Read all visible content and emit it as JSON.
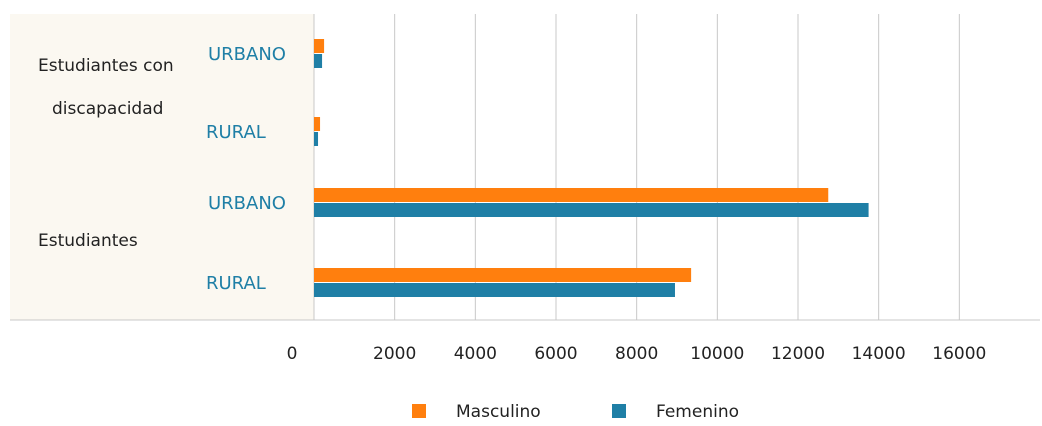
{
  "colors": {
    "masculino": "#FF7F0E",
    "femenino": "#1F7FA6",
    "sublabel": "#1F7FA6",
    "panel": "#FBF8F1",
    "grid": "#C8C8C8"
  },
  "chart_data": {
    "type": "bar",
    "orientation": "horizontal",
    "title": "",
    "xlabel": "",
    "ylabel": "",
    "xlim": [
      0,
      18000
    ],
    "x_ticks": [
      0,
      2000,
      4000,
      6000,
      8000,
      10000,
      12000,
      14000,
      16000
    ],
    "grid": true,
    "legend_position": "bottom",
    "groups": [
      {
        "label_lines": [
          "Estudiantes con",
          "discapacidad"
        ],
        "categories": [
          {
            "label": "URBANO",
            "values": {
              "Masculino": 250,
              "Femenino": 200
            }
          },
          {
            "label": "RURAL",
            "values": {
              "Masculino": 150,
              "Femenino": 100
            }
          }
        ]
      },
      {
        "label_lines": [
          "Estudiantes"
        ],
        "categories": [
          {
            "label": "URBANO",
            "values": {
              "Masculino": 12750,
              "Femenino": 13750
            }
          },
          {
            "label": "RURAL",
            "values": {
              "Masculino": 9350,
              "Femenino": 8950
            }
          }
        ]
      }
    ],
    "series": [
      {
        "name": "Masculino",
        "color": "#FF7F0E"
      },
      {
        "name": "Femenino",
        "color": "#1F7FA6"
      }
    ]
  }
}
